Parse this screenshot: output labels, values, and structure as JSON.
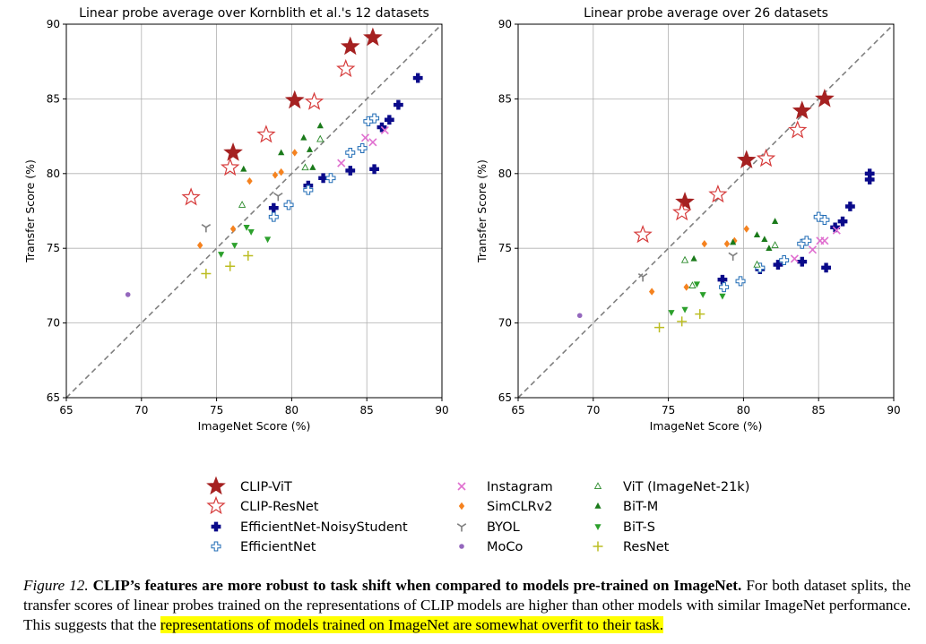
{
  "legend": {
    "entries": [
      {
        "key": "clip_vit",
        "label": "CLIP-ViT"
      },
      {
        "key": "clip_resnet",
        "label": "CLIP-ResNet"
      },
      {
        "key": "effnet_ns",
        "label": "EfficientNet-NoisyStudent"
      },
      {
        "key": "effnet",
        "label": "EfficientNet"
      },
      {
        "key": "instagram",
        "label": "Instagram"
      },
      {
        "key": "simclr",
        "label": "SimCLRv2"
      },
      {
        "key": "byol",
        "label": "BYOL"
      },
      {
        "key": "moco",
        "label": "MoCo"
      },
      {
        "key": "vit21k",
        "label": "ViT (ImageNet-21k)"
      },
      {
        "key": "bitm",
        "label": "BiT-M"
      },
      {
        "key": "bits",
        "label": "BiT-S"
      },
      {
        "key": "resnet",
        "label": "ResNet"
      }
    ]
  },
  "styles": {
    "clip_vit": {
      "marker": "star-filled",
      "color": "#a52121"
    },
    "clip_resnet": {
      "marker": "star-open",
      "color": "#d63a3a"
    },
    "effnet_ns": {
      "marker": "plus-filled",
      "color": "#0a0a8a"
    },
    "effnet": {
      "marker": "plus-open",
      "color": "#1f6bb5"
    },
    "instagram": {
      "marker": "x",
      "color": "#e070d0"
    },
    "simclr": {
      "marker": "diamond",
      "color": "#f5821f"
    },
    "byol": {
      "marker": "tri-y",
      "color": "#7f7f7f"
    },
    "moco": {
      "marker": "dot",
      "color": "#9467bd"
    },
    "vit21k": {
      "marker": "tri-up-open",
      "color": "#2a8a2a"
    },
    "bitm": {
      "marker": "tri-up",
      "color": "#1a7a1a"
    },
    "bits": {
      "marker": "tri-down",
      "color": "#2ca02c"
    },
    "resnet": {
      "marker": "plus-thin",
      "color": "#bcbd22"
    }
  },
  "chart_data": [
    {
      "type": "scatter",
      "title": "Linear probe average over Kornblith et al.'s 12 datasets",
      "xlabel": "ImageNet Score (%)",
      "ylabel": "Transfer Score (%)",
      "xlim": [
        65,
        90
      ],
      "ylim": [
        65,
        90
      ],
      "xticks": [
        65,
        70,
        75,
        80,
        85,
        90
      ],
      "yticks": [
        65,
        70,
        75,
        80,
        85,
        90
      ],
      "grid": true,
      "reference_line": "y = x",
      "series": [
        {
          "key": "clip_vit",
          "name": "CLIP-ViT",
          "points": [
            [
              76.1,
              81.4
            ],
            [
              80.2,
              84.9
            ],
            [
              83.9,
              88.5
            ],
            [
              85.4,
              89.1
            ]
          ]
        },
        {
          "key": "clip_resnet",
          "name": "CLIP-ResNet",
          "points": [
            [
              73.3,
              78.4
            ],
            [
              75.9,
              80.4
            ],
            [
              78.3,
              82.6
            ],
            [
              81.5,
              84.8
            ],
            [
              83.6,
              87.0
            ]
          ]
        },
        {
          "key": "effnet_ns",
          "name": "EfficientNet-NoisyStudent",
          "points": [
            [
              78.8,
              77.7
            ],
            [
              81.1,
              79.2
            ],
            [
              82.1,
              79.7
            ],
            [
              83.9,
              80.2
            ],
            [
              85.5,
              80.3
            ],
            [
              86.0,
              83.1
            ],
            [
              86.5,
              83.6
            ],
            [
              87.1,
              84.6
            ],
            [
              88.4,
              86.4
            ]
          ]
        },
        {
          "key": "effnet",
          "name": "EfficientNet",
          "points": [
            [
              78.8,
              77.1
            ],
            [
              79.8,
              77.9
            ],
            [
              81.1,
              78.9
            ],
            [
              82.6,
              79.7
            ],
            [
              83.9,
              81.4
            ],
            [
              84.7,
              81.7
            ],
            [
              85.1,
              83.5
            ],
            [
              85.5,
              83.7
            ]
          ]
        },
        {
          "key": "instagram",
          "name": "Instagram",
          "points": [
            [
              83.3,
              80.7
            ],
            [
              84.9,
              82.4
            ],
            [
              85.4,
              82.1
            ],
            [
              86.2,
              82.9
            ]
          ]
        },
        {
          "key": "simclr",
          "name": "SimCLRv2",
          "points": [
            [
              73.9,
              75.2
            ],
            [
              76.1,
              76.3
            ],
            [
              77.2,
              79.5
            ],
            [
              78.9,
              79.9
            ],
            [
              79.3,
              80.1
            ],
            [
              80.2,
              81.4
            ]
          ]
        },
        {
          "key": "byol",
          "name": "BYOL",
          "points": [
            [
              74.3,
              76.4
            ],
            [
              79.1,
              78.5
            ]
          ]
        },
        {
          "key": "moco",
          "name": "MoCo",
          "points": [
            [
              69.1,
              71.9
            ]
          ]
        },
        {
          "key": "vit21k",
          "name": "ViT (ImageNet-21k)",
          "points": [
            [
              76.7,
              77.9
            ],
            [
              80.9,
              80.4
            ],
            [
              81.9,
              82.3
            ]
          ]
        },
        {
          "key": "bitm",
          "name": "BiT-M",
          "points": [
            [
              76.8,
              80.3
            ],
            [
              79.3,
              81.4
            ],
            [
              80.8,
              82.4
            ],
            [
              81.2,
              81.6
            ],
            [
              81.9,
              83.2
            ],
            [
              81.4,
              80.4
            ]
          ]
        },
        {
          "key": "bits",
          "name": "BiT-S",
          "points": [
            [
              75.3,
              74.6
            ],
            [
              76.2,
              75.2
            ],
            [
              77.0,
              76.4
            ],
            [
              77.3,
              76.1
            ],
            [
              78.4,
              75.6
            ]
          ]
        },
        {
          "key": "resnet",
          "name": "ResNet",
          "points": [
            [
              74.3,
              73.3
            ],
            [
              75.9,
              73.8
            ],
            [
              77.1,
              74.5
            ]
          ]
        }
      ]
    },
    {
      "type": "scatter",
      "title": "Linear probe average over 26 datasets",
      "xlabel": "ImageNet Score (%)",
      "ylabel": "Transfer Score (%)",
      "xlim": [
        65,
        90
      ],
      "ylim": [
        65,
        90
      ],
      "xticks": [
        65,
        70,
        75,
        80,
        85,
        90
      ],
      "yticks": [
        65,
        70,
        75,
        80,
        85,
        90
      ],
      "grid": true,
      "reference_line": "y = x",
      "series": [
        {
          "key": "clip_vit",
          "name": "CLIP-ViT",
          "points": [
            [
              76.1,
              78.1
            ],
            [
              80.2,
              80.9
            ],
            [
              83.9,
              84.2
            ],
            [
              85.4,
              85.0
            ]
          ]
        },
        {
          "key": "clip_resnet",
          "name": "CLIP-ResNet",
          "points": [
            [
              73.3,
              75.9
            ],
            [
              75.9,
              77.4
            ],
            [
              78.3,
              78.6
            ],
            [
              81.5,
              81.0
            ],
            [
              83.6,
              82.9
            ]
          ]
        },
        {
          "key": "effnet_ns",
          "name": "EfficientNet-NoisyStudent",
          "points": [
            [
              78.6,
              72.9
            ],
            [
              81.1,
              73.6
            ],
            [
              82.3,
              73.9
            ],
            [
              83.9,
              74.1
            ],
            [
              85.5,
              73.7
            ],
            [
              86.1,
              76.4
            ],
            [
              86.6,
              76.8
            ],
            [
              87.1,
              77.8
            ],
            [
              88.4,
              79.6
            ],
            [
              88.4,
              80.0
            ]
          ]
        },
        {
          "key": "effnet",
          "name": "EfficientNet",
          "points": [
            [
              78.7,
              72.4
            ],
            [
              79.8,
              72.8
            ],
            [
              81.1,
              73.7
            ],
            [
              82.7,
              74.2
            ],
            [
              83.9,
              75.3
            ],
            [
              84.2,
              75.5
            ],
            [
              85.0,
              77.1
            ],
            [
              85.4,
              76.9
            ]
          ]
        },
        {
          "key": "instagram",
          "name": "Instagram",
          "points": [
            [
              83.4,
              74.3
            ],
            [
              84.6,
              74.9
            ],
            [
              85.1,
              75.5
            ],
            [
              85.4,
              75.5
            ],
            [
              86.2,
              76.2
            ]
          ]
        },
        {
          "key": "simclr",
          "name": "SimCLRv2",
          "points": [
            [
              73.9,
              72.1
            ],
            [
              76.2,
              72.4
            ],
            [
              77.4,
              75.3
            ],
            [
              78.9,
              75.3
            ],
            [
              79.4,
              75.5
            ],
            [
              80.2,
              76.3
            ]
          ]
        },
        {
          "key": "byol",
          "name": "BYOL",
          "points": [
            [
              73.3,
              73.1
            ],
            [
              79.3,
              74.5
            ]
          ]
        },
        {
          "key": "moco",
          "name": "MoCo",
          "points": [
            [
              69.1,
              70.5
            ]
          ]
        },
        {
          "key": "vit21k",
          "name": "ViT (ImageNet-21k)",
          "points": [
            [
              76.1,
              74.2
            ],
            [
              76.6,
              72.5
            ],
            [
              80.9,
              73.9
            ],
            [
              82.1,
              75.2
            ]
          ]
        },
        {
          "key": "bitm",
          "name": "BiT-M",
          "points": [
            [
              76.7,
              74.3
            ],
            [
              79.3,
              75.4
            ],
            [
              80.9,
              75.9
            ],
            [
              81.4,
              75.6
            ],
            [
              81.7,
              75.0
            ],
            [
              82.1,
              76.8
            ]
          ]
        },
        {
          "key": "bits",
          "name": "BiT-S",
          "points": [
            [
              75.2,
              70.7
            ],
            [
              76.1,
              70.9
            ],
            [
              76.9,
              72.6
            ],
            [
              77.3,
              71.9
            ],
            [
              78.6,
              71.8
            ]
          ]
        },
        {
          "key": "resnet",
          "name": "ResNet",
          "points": [
            [
              74.4,
              69.7
            ],
            [
              75.9,
              70.1
            ],
            [
              77.1,
              70.6
            ]
          ]
        }
      ]
    }
  ],
  "caption": {
    "lead": "Figure 12.",
    "bold": "CLIP’s features are more robust to task shift when compared to models pre-trained on ImageNet.",
    "body": "For both dataset splits, the transfer scores of linear probes trained on the representations of CLIP models are higher than other models with similar ImageNet performance. This suggests that the",
    "highlight": "representations of models trained on ImageNet are somewhat overfit to their task."
  }
}
